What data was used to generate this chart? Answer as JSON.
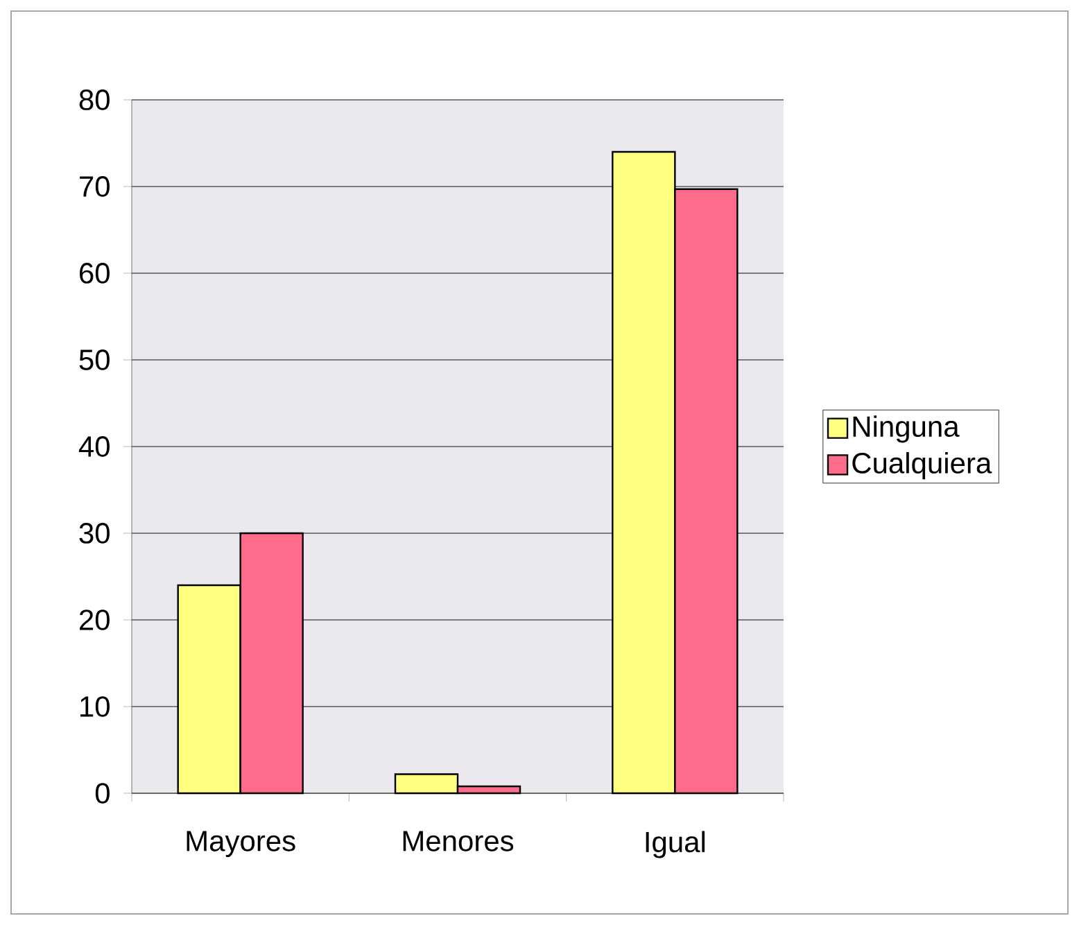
{
  "chart_data": {
    "type": "bar",
    "categories": [
      "Mayores",
      "Menores",
      "Igual"
    ],
    "series": [
      {
        "name": "Ninguna",
        "color": "#ffff80",
        "values": [
          24,
          2.2,
          74
        ]
      },
      {
        "name": "Cualquiera",
        "color": "#ff6b8a",
        "values": [
          30,
          0.8,
          69.7
        ]
      }
    ],
    "ylim": [
      0,
      80
    ],
    "yticks": [
      0,
      10,
      20,
      30,
      40,
      50,
      60,
      70,
      80
    ],
    "grid": "y",
    "legend": "right"
  }
}
